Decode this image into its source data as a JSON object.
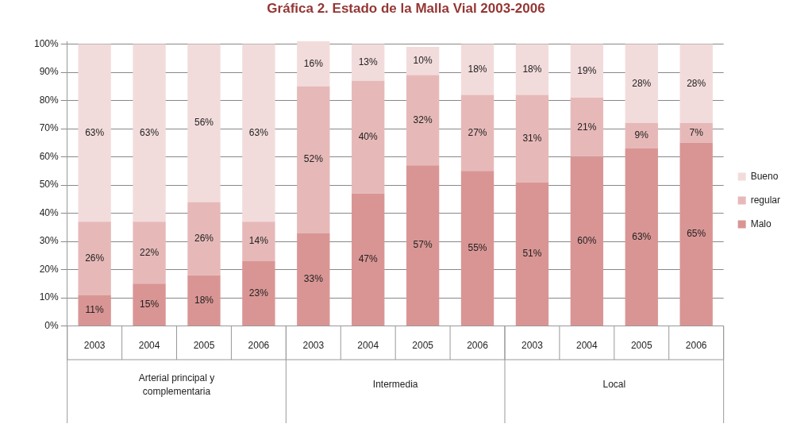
{
  "chart_data": {
    "type": "bar",
    "title": "Gráfica 2. Estado de la Malla Vial 2003-2006",
    "stacked": true,
    "legend": "right",
    "grid": "y",
    "categories": [
      "2003",
      "2004",
      "2005",
      "2006",
      "2003",
      "2004",
      "2005",
      "2006",
      "2003",
      "2004",
      "2005",
      "2006"
    ],
    "annotations": [
      "Arterial principal y complementaria",
      "Intermedia",
      "Local"
    ],
    "series": [
      {
        "name": "Malo",
        "color": "#d99594",
        "values": [
          11,
          15,
          18,
          23,
          33,
          47,
          57,
          55,
          51,
          60,
          63,
          65
        ],
        "value_labels": [
          "11%",
          "15%",
          "18%",
          "23%",
          "33%",
          "47%",
          "57%",
          "55%",
          "51%",
          "60%",
          "63%",
          "65%"
        ]
      },
      {
        "name": "regular",
        "color": "#e6b9b8",
        "values": [
          26,
          22,
          26,
          14,
          52,
          40,
          32,
          27,
          31,
          21,
          9,
          7
        ],
        "value_labels": [
          "26%",
          "22%",
          "26%",
          "14%",
          "52%",
          "40%",
          "32%",
          "27%",
          "31%",
          "21%",
          "9%",
          "7%"
        ]
      },
      {
        "name": "Bueno",
        "color": "#f2dcdb",
        "values": [
          63,
          63,
          56,
          63,
          16,
          13,
          10,
          18,
          18,
          19,
          28,
          28
        ],
        "value_labels": [
          "63%",
          "63%",
          "56%",
          "63%",
          "16%",
          "13%",
          "10%",
          "18%",
          "18%",
          "19%",
          "28%",
          "28%"
        ]
      }
    ],
    "ylim": [
      0,
      101
    ],
    "yticks": [
      {
        "value": 0,
        "label": "0%"
      },
      {
        "value": 10,
        "label": "10%"
      },
      {
        "value": 20,
        "label": "20%"
      },
      {
        "value": 30,
        "label": "30%"
      },
      {
        "value": 40,
        "label": "40%"
      },
      {
        "value": 50,
        "label": "50%"
      },
      {
        "value": 60,
        "label": "60%"
      },
      {
        "value": 70,
        "label": "70%"
      },
      {
        "value": 80,
        "label": "80%"
      },
      {
        "value": 90,
        "label": "90%"
      },
      {
        "value": 100,
        "label": "100%"
      }
    ]
  }
}
